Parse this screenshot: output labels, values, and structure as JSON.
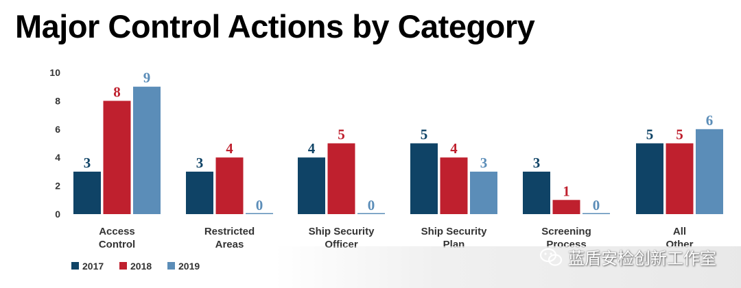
{
  "page": {
    "title": "Major Control Actions by Category"
  },
  "chart_data": {
    "type": "bar",
    "title": "Major Control Actions by Category",
    "categories": [
      [
        "Access",
        "Control"
      ],
      [
        "Restricted",
        "Areas"
      ],
      [
        "Ship Security",
        "Officer"
      ],
      [
        "Ship Security",
        "Plan"
      ],
      [
        "Screening",
        "Process"
      ],
      [
        "All",
        "Other"
      ]
    ],
    "series": [
      {
        "name": "2017",
        "color": "#0f4366",
        "values": [
          3,
          3,
          4,
          5,
          3,
          5
        ]
      },
      {
        "name": "2018",
        "color": "#bf202e",
        "values": [
          8,
          4,
          5,
          4,
          1,
          5
        ]
      },
      {
        "name": "2019",
        "color": "#5b8db8",
        "values": [
          9,
          0,
          0,
          3,
          0,
          6
        ]
      }
    ],
    "yticks": [
      0,
      2,
      4,
      6,
      8,
      10
    ],
    "ylim": [
      0,
      10
    ],
    "xlabel": "",
    "ylabel": "",
    "grid": false,
    "legend_position": "bottom-left"
  },
  "watermark": {
    "text": "蓝盾安检创新工作室",
    "icon": "wechat-icon"
  }
}
